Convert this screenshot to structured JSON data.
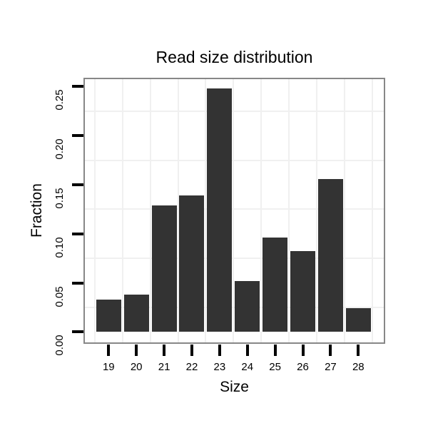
{
  "chart_data": {
    "type": "bar",
    "title": "Read size distribution",
    "xlabel": "Size",
    "ylabel": "Fraction",
    "categories": [
      19,
      20,
      21,
      22,
      23,
      24,
      25,
      26,
      27,
      28
    ],
    "values": [
      0.033,
      0.038,
      0.129,
      0.139,
      0.248,
      0.052,
      0.096,
      0.082,
      0.156,
      0.024
    ],
    "x_tick_labels": [
      "19",
      "20",
      "21",
      "22",
      "23",
      "24",
      "25",
      "26",
      "27",
      "28"
    ],
    "y_ticks": [
      0.0,
      0.05,
      0.1,
      0.15,
      0.2,
      0.25
    ],
    "y_tick_labels": [
      "0.00",
      "0.05",
      "0.10",
      "0.15",
      "0.20",
      "0.25"
    ],
    "ylim": [
      -0.012,
      0.2585
    ],
    "xlim": [
      18.1,
      29.0
    ],
    "bar_width_units": 0.9,
    "legend": "none",
    "grid": "minor-only",
    "minor_grid_y": [
      0.025,
      0.075,
      0.125,
      0.175,
      0.225
    ],
    "minor_grid_x": [
      18.5,
      19.5,
      20.5,
      21.5,
      22.5,
      23.5,
      24.5,
      25.5,
      26.5,
      27.5,
      28.5
    ],
    "colors": {
      "bar": "#333333",
      "panel_border": "#878787",
      "grid": "#f0f0f0",
      "tick": "#000000",
      "text": "#000000",
      "background": "#ffffff"
    }
  }
}
